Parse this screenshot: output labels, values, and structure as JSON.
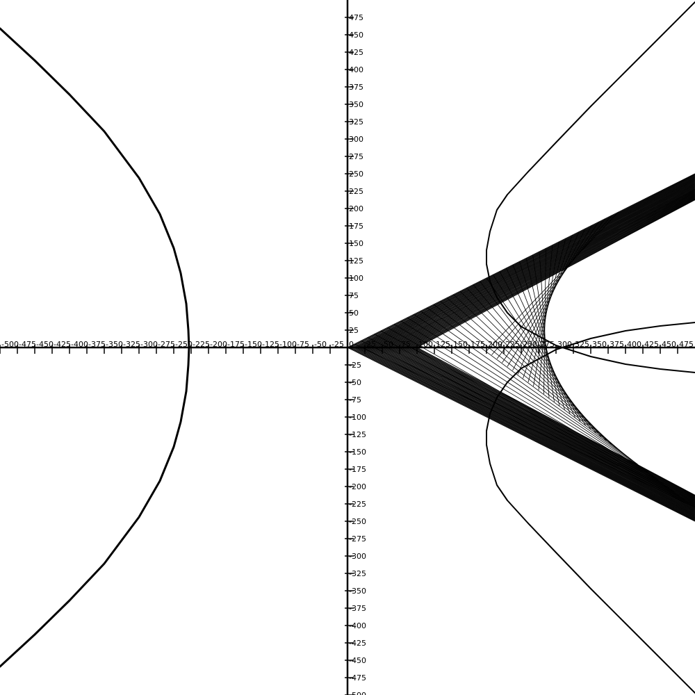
{
  "colors": {
    "background": "#ffffff",
    "ink": "#000000"
  },
  "chart_data": {
    "type": "line",
    "title": "",
    "xlabel": "",
    "ylabel": "",
    "xlim": [
      -500,
      500
    ],
    "ylim": [
      -500,
      500
    ],
    "grid": false,
    "x_ticks": [
      -500,
      -475,
      -450,
      -425,
      -400,
      -375,
      -350,
      -325,
      -300,
      -275,
      -250,
      -225,
      -200,
      -175,
      -150,
      -125,
      -100,
      -75,
      -50,
      -25,
      0,
      25,
      50,
      75,
      100,
      125,
      150,
      175,
      200,
      225,
      250,
      275,
      300,
      325,
      350,
      375,
      400,
      425,
      450,
      475
    ],
    "x_tick_labels": [
      "-500",
      "-475",
      "-450",
      "-425",
      "-400",
      "-375",
      "-350",
      "-325",
      "-300",
      "-275",
      "-250",
      "-225",
      "-200",
      "-175",
      "-150",
      "-125",
      "-100",
      "-75",
      "-50",
      "-25",
      "0",
      "25",
      "50",
      "75",
      "100",
      "125",
      "150",
      "175",
      "200",
      "225",
      "250",
      "275",
      "300",
      "325",
      "350",
      "375",
      "400",
      "425",
      "450",
      "475"
    ],
    "y_ticks": [
      475,
      450,
      425,
      400,
      375,
      350,
      325,
      300,
      275,
      250,
      225,
      200,
      175,
      150,
      125,
      100,
      75,
      50,
      25,
      -25,
      -50,
      -75,
      -100,
      -125,
      -150,
      -175,
      -200,
      -225,
      -250,
      -275,
      -300,
      -325,
      -350,
      -375,
      -400,
      -425,
      -450,
      -475,
      -500
    ],
    "y_tick_labels": [
      "475",
      "450",
      "425",
      "400",
      "375",
      "350",
      "325",
      "300",
      "275",
      "250",
      "225",
      "200",
      "175",
      "150",
      "125",
      "100",
      "75",
      "50",
      "25",
      "-25",
      "-50",
      "-75",
      "-100",
      "-125",
      "-150",
      "-175",
      "-200",
      "-225",
      "-250",
      "-275",
      "-300",
      "-325",
      "-350",
      "-375",
      "-400",
      "-425",
      "-450",
      "-475",
      "-500"
    ],
    "series": [
      {
        "points": [
          [
            -500,
            459
          ],
          [
            -450,
            413
          ],
          [
            -400,
            364
          ],
          [
            -350,
            311
          ],
          [
            -300,
            244
          ],
          [
            -270,
            192
          ],
          [
            -250,
            143
          ],
          [
            -240,
            107
          ],
          [
            -232,
            63
          ],
          [
            -229,
            25
          ],
          [
            -228,
            0
          ],
          [
            -229,
            -25
          ],
          [
            -232,
            -63
          ],
          [
            -240,
            -107
          ],
          [
            -250,
            -143
          ],
          [
            -270,
            -192
          ],
          [
            -300,
            -244
          ],
          [
            -350,
            -311
          ],
          [
            -400,
            -364
          ],
          [
            -450,
            -413
          ],
          [
            -500,
            -459
          ]
        ]
      },
      {
        "points": [
          [
            500,
            497
          ],
          [
            450,
            447
          ],
          [
            400,
            397
          ],
          [
            350,
            347
          ],
          [
            300,
            295
          ],
          [
            260,
            253
          ],
          [
            230,
            220
          ],
          [
            215,
            198
          ],
          [
            205,
            167
          ],
          [
            200,
            140
          ],
          [
            200,
            120
          ],
          [
            205,
            95
          ],
          [
            215,
            72
          ],
          [
            230,
            50
          ],
          [
            250,
            30
          ],
          [
            300,
            3
          ],
          [
            350,
            -13
          ],
          [
            400,
            -24
          ],
          [
            450,
            -31
          ],
          [
            500,
            -36
          ]
        ]
      },
      {
        "points": [
          [
            500,
            36
          ],
          [
            450,
            31
          ],
          [
            400,
            24
          ],
          [
            350,
            13
          ],
          [
            300,
            -3
          ],
          [
            250,
            -30
          ],
          [
            230,
            -50
          ],
          [
            215,
            -72
          ],
          [
            205,
            -95
          ],
          [
            200,
            -120
          ],
          [
            200,
            -140
          ],
          [
            205,
            -167
          ],
          [
            215,
            -198
          ],
          [
            230,
            -220
          ],
          [
            260,
            -253
          ],
          [
            300,
            -295
          ],
          [
            350,
            -347
          ],
          [
            400,
            -397
          ],
          [
            450,
            -447
          ],
          [
            500,
            -497
          ]
        ]
      }
    ]
  }
}
